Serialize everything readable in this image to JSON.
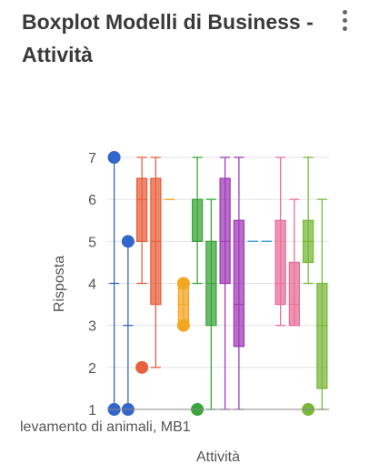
{
  "title": "Boxplot Modelli di Business - Attività",
  "menu": {
    "icon": "more-vertical-icon"
  },
  "chart_data": {
    "type": "boxplot",
    "title": "Boxplot Modelli di Business - Attività",
    "xlabel": "Attività",
    "ylabel": "Risposta",
    "ylim": [
      1,
      7
    ],
    "yticks": [
      1,
      2,
      3,
      4,
      5,
      6,
      7
    ],
    "visible_category_label": "levamento di animali, MB1",
    "boxes": [
      {
        "color": "#3366cc",
        "min": 1,
        "q1": 1,
        "median": 1,
        "q3": 1,
        "max": 7,
        "outliers": [
          7,
          1
        ],
        "tick": 4
      },
      {
        "color": "#3366cc",
        "min": 1,
        "q1": 1,
        "median": 1,
        "q3": 1,
        "max": 5,
        "outliers": [
          5,
          1
        ],
        "tick": 3
      },
      {
        "color": "#e8603c",
        "min": 4,
        "q1": 5,
        "median": 6,
        "q3": 6.5,
        "max": 7,
        "outliers": [
          2
        ]
      },
      {
        "color": "#e8603c",
        "min": 2,
        "q1": 3.5,
        "median": 5,
        "q3": 6.5,
        "max": 7,
        "outliers": []
      },
      {
        "color": "#f5a623",
        "min": 6,
        "q1": 6,
        "median": 6,
        "q3": 6,
        "max": 6,
        "outliers": []
      },
      {
        "color": "#f5a623",
        "min": 3,
        "q1": 3,
        "median": 3.5,
        "q3": 4,
        "max": 4,
        "outliers": [
          4,
          3
        ]
      },
      {
        "color": "#3aa63a",
        "min": 4,
        "q1": 5,
        "median": 6,
        "q3": 6,
        "max": 7,
        "outliers": [
          1
        ]
      },
      {
        "color": "#3aa63a",
        "min": 1,
        "q1": 3,
        "median": 4,
        "q3": 5,
        "max": 6,
        "outliers": []
      },
      {
        "color": "#a03cb8",
        "min": 1,
        "q1": 4,
        "median": 5,
        "q3": 6.5,
        "max": 7,
        "outliers": []
      },
      {
        "color": "#a03cb8",
        "min": 1,
        "q1": 2.5,
        "median": 3.5,
        "q3": 5.5,
        "max": 7,
        "outliers": []
      },
      {
        "color": "#3aa0d8",
        "min": 5,
        "q1": 5,
        "median": 5,
        "q3": 5,
        "max": 5,
        "outliers": []
      },
      {
        "color": "#3aa0d8",
        "min": 5,
        "q1": 5,
        "median": 5,
        "q3": 5,
        "max": 5,
        "outliers": []
      },
      {
        "color": "#e8709a",
        "min": 3,
        "q1": 3.5,
        "median": 4,
        "q3": 5.5,
        "max": 7,
        "outliers": []
      },
      {
        "color": "#e8709a",
        "min": 3,
        "q1": 3,
        "median": 3.5,
        "q3": 4.5,
        "max": 6,
        "outliers": []
      },
      {
        "color": "#7ab83a",
        "min": 4,
        "q1": 4.5,
        "median": 5,
        "q3": 5.5,
        "max": 7,
        "outliers": [
          1
        ]
      },
      {
        "color": "#7ab83a",
        "min": 1,
        "q1": 1.5,
        "median": 3,
        "q3": 4,
        "max": 6,
        "outliers": []
      }
    ]
  }
}
